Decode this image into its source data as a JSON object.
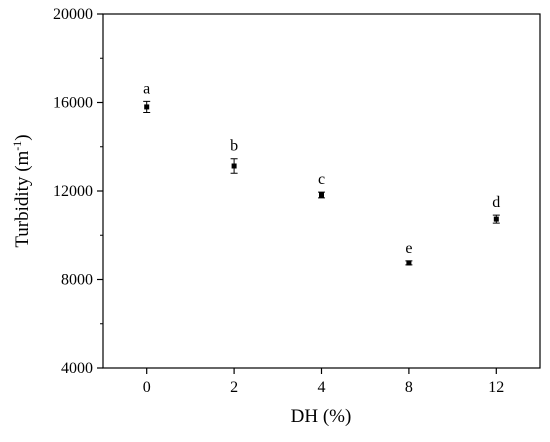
{
  "chart_data": {
    "type": "scatter",
    "xlabel": "DH (%)",
    "ylabel": [
      "Turbidity (m",
      "-1",
      ")"
    ],
    "categories": [
      "0",
      "2",
      "4",
      "8",
      "12"
    ],
    "values": [
      15800,
      13130,
      11820,
      8750,
      10730
    ],
    "errors": [
      250,
      330,
      130,
      90,
      180
    ],
    "annotations": [
      "a",
      "b",
      "c",
      "e",
      "d"
    ],
    "color": "#000000",
    "ylim": [
      4000,
      20000
    ],
    "yticks": [
      4000,
      8000,
      12000,
      16000,
      20000
    ],
    "minor_yticks": [
      6000,
      10000,
      14000,
      18000
    ]
  }
}
